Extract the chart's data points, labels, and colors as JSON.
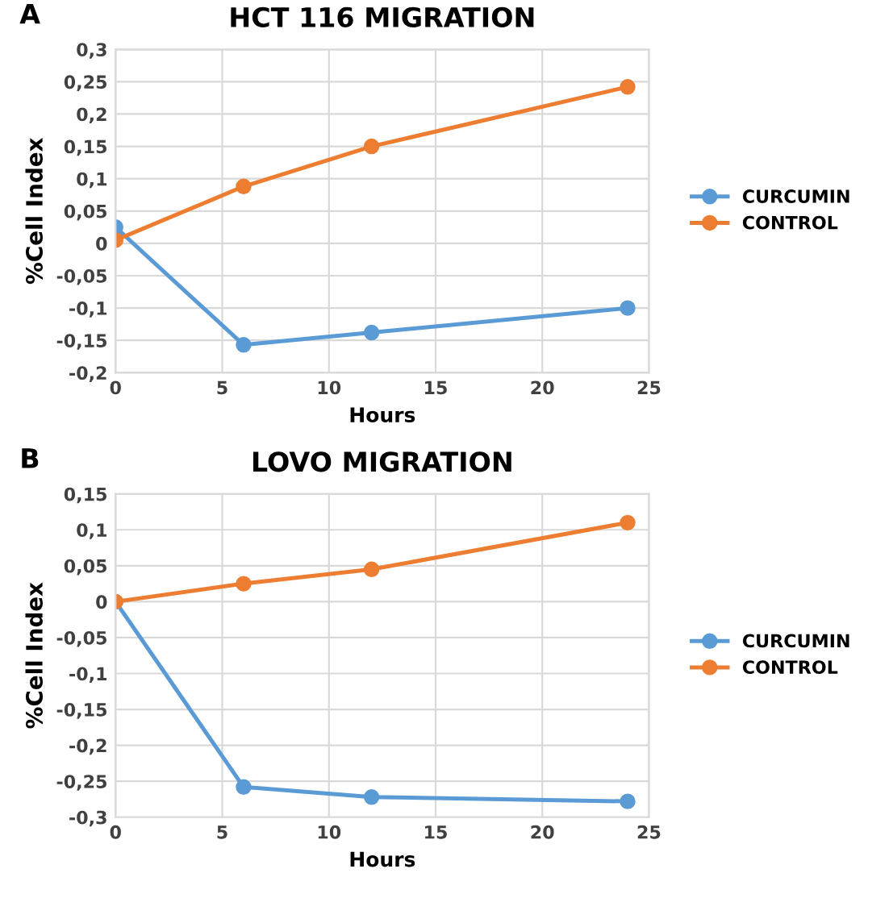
{
  "chart_data": [
    {
      "type": "line",
      "title": "HCT 116 MIGRATION",
      "xlabel": "Hours",
      "ylabel": "%Cell Index",
      "annotations": [
        "A"
      ],
      "x": [
        0,
        6,
        12,
        24
      ],
      "series": [
        {
          "name": "CURCUMIN",
          "color": "#5b9bd5",
          "values": [
            0.025,
            -0.157,
            -0.138,
            -0.1
          ]
        },
        {
          "name": "CONTROL",
          "color": "#ed7d31",
          "values": [
            0.005,
            0.088,
            0.15,
            0.242
          ]
        }
      ],
      "xlim": [
        0,
        25
      ],
      "xticks": [
        0,
        5,
        10,
        15,
        20,
        25
      ],
      "ylim": [
        -0.2,
        0.3
      ],
      "yticks": [
        {
          "value": -0.2,
          "label": "-0,2"
        },
        {
          "value": -0.15,
          "label": "-0,15"
        },
        {
          "value": -0.1,
          "label": "-0,1"
        },
        {
          "value": -0.05,
          "label": "-0,05"
        },
        0,
        {
          "value": 0.05,
          "label": "0,05"
        },
        {
          "value": 0.1,
          "label": "0,1"
        },
        {
          "value": 0.15,
          "label": "0,15"
        },
        {
          "value": 0.2,
          "label": "0,2"
        },
        {
          "value": 0.25,
          "label": "0,25"
        },
        {
          "value": 0.3,
          "label": "0,3"
        }
      ],
      "grid": true,
      "legend": "right",
      "marker": "circle",
      "line_style": "solid"
    },
    {
      "type": "line",
      "title": "LOVO MIGRATION",
      "xlabel": "Hours",
      "ylabel": "%Cell Index",
      "annotations": [
        "B"
      ],
      "x": [
        0,
        6,
        12,
        24
      ],
      "series": [
        {
          "name": "CURCUMIN",
          "color": "#5b9bd5",
          "values": [
            0,
            -0.258,
            -0.272,
            -0.278
          ]
        },
        {
          "name": "CONTROL",
          "color": "#ed7d31",
          "values": [
            0,
            0.025,
            0.045,
            0.11
          ]
        }
      ],
      "xlim": [
        0,
        25
      ],
      "xticks": [
        0,
        5,
        10,
        15,
        20,
        25
      ],
      "ylim": [
        -0.3,
        0.15
      ],
      "yticks": [
        {
          "value": -0.3,
          "label": "-0,3"
        },
        {
          "value": -0.25,
          "label": "-0,25"
        },
        {
          "value": -0.2,
          "label": "-0,2"
        },
        {
          "value": -0.15,
          "label": "-0,15"
        },
        {
          "value": -0.1,
          "label": "-0,1"
        },
        {
          "value": -0.05,
          "label": "-0,05"
        },
        0,
        {
          "value": 0.05,
          "label": "0,05"
        },
        {
          "value": 0.1,
          "label": "0,1"
        },
        {
          "value": 0.15,
          "label": "0,15"
        }
      ],
      "grid": true,
      "legend": "right",
      "marker": "circle",
      "line_style": "solid"
    }
  ]
}
